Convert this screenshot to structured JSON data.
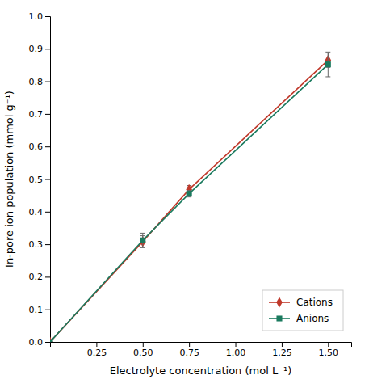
{
  "chart_data": {
    "type": "line",
    "x_label": "Electrolyte concentration (mol L⁻¹)",
    "y_label": "In-pore ion population (mmol g⁻¹)",
    "x": [
      0,
      0.5,
      0.75,
      1.5
    ],
    "series": [
      {
        "name": "Cations",
        "color": "#c0392b",
        "marker": "diamond",
        "values": [
          0,
          0.308,
          0.468,
          0.865
        ],
        "yerr": [
          0,
          0.018,
          0.012,
          0.022
        ]
      },
      {
        "name": "Anions",
        "color": "#1a7a5e",
        "marker": "square",
        "values": [
          0,
          0.312,
          0.455,
          0.852
        ],
        "yerr": [
          0,
          0.022,
          0.01,
          0.038
        ]
      }
    ],
    "xlim": [
      0,
      1.625
    ],
    "xticks": [
      0.25,
      {
        "value": 0.5,
        "label": "0.50"
      },
      0.75,
      {
        "value": 1.0,
        "label": "1.00"
      },
      1.25,
      {
        "value": 1.5,
        "label": "1.50"
      }
    ],
    "ylim": [
      0.0,
      1.0
    ],
    "yticks": [
      {
        "value": 0.0,
        "label": "0.0"
      },
      0.1,
      0.2,
      0.3,
      0.4,
      0.5,
      0.6,
      0.7,
      0.8,
      0.9,
      {
        "value": 1.0,
        "label": "1.0"
      }
    ],
    "grid": false,
    "legend": "lower right"
  }
}
